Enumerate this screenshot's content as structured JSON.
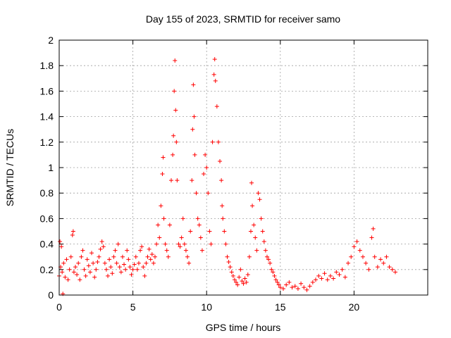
{
  "chart_data": {
    "type": "scatter",
    "title": "Day 155 of 2023, SRMTID for receiver samo",
    "xlabel": "GPS time / hours",
    "ylabel": "SRMTID / TECUs",
    "xlim": [
      0,
      25
    ],
    "ylim": [
      0,
      2
    ],
    "x_ticks": [
      0,
      5,
      10,
      15,
      20
    ],
    "x_tick_labels": [
      "0",
      "5",
      "10",
      "15",
      "20"
    ],
    "y_ticks": [
      0,
      0.2,
      0.4,
      0.6,
      0.8,
      1,
      1.2,
      1.4,
      1.6,
      1.8,
      2
    ],
    "y_tick_labels": [
      "0",
      "0.2",
      "0.4",
      "0.6",
      "0.8",
      "1",
      "1.2",
      "1.4",
      "1.6",
      "1.8",
      "2"
    ],
    "grid": true,
    "marker": "+",
    "color": "#ff0000",
    "series": [
      {
        "name": "SRMTID",
        "points": [
          [
            0.0,
            0.15
          ],
          [
            0.05,
            0.42
          ],
          [
            0.1,
            0.22
          ],
          [
            0.15,
            0.38
          ],
          [
            0.2,
            0.18
          ],
          [
            0.25,
            0.01
          ],
          [
            0.3,
            0.25
          ],
          [
            0.4,
            0.14
          ],
          [
            0.5,
            0.28
          ],
          [
            0.6,
            0.12
          ],
          [
            0.7,
            0.2
          ],
          [
            0.8,
            0.3
          ],
          [
            0.9,
            0.47
          ],
          [
            0.95,
            0.5
          ],
          [
            1.0,
            0.18
          ],
          [
            1.1,
            0.22
          ],
          [
            1.2,
            0.16
          ],
          [
            1.3,
            0.25
          ],
          [
            1.4,
            0.12
          ],
          [
            1.5,
            0.3
          ],
          [
            1.6,
            0.35
          ],
          [
            1.7,
            0.2
          ],
          [
            1.8,
            0.15
          ],
          [
            1.9,
            0.28
          ],
          [
            2.0,
            0.23
          ],
          [
            2.1,
            0.18
          ],
          [
            2.2,
            0.33
          ],
          [
            2.3,
            0.25
          ],
          [
            2.4,
            0.14
          ],
          [
            2.5,
            0.2
          ],
          [
            2.6,
            0.26
          ],
          [
            2.7,
            0.3
          ],
          [
            2.8,
            0.36
          ],
          [
            2.9,
            0.42
          ],
          [
            3.0,
            0.38
          ],
          [
            3.1,
            0.25
          ],
          [
            3.2,
            0.2
          ],
          [
            3.3,
            0.15
          ],
          [
            3.4,
            0.28
          ],
          [
            3.5,
            0.22
          ],
          [
            3.6,
            0.17
          ],
          [
            3.7,
            0.3
          ],
          [
            3.8,
            0.35
          ],
          [
            3.9,
            0.25
          ],
          [
            4.0,
            0.4
          ],
          [
            4.1,
            0.22
          ],
          [
            4.2,
            0.18
          ],
          [
            4.3,
            0.3
          ],
          [
            4.4,
            0.24
          ],
          [
            4.5,
            0.2
          ],
          [
            4.6,
            0.35
          ],
          [
            4.7,
            0.28
          ],
          [
            4.8,
            0.22
          ],
          [
            4.9,
            0.16
          ],
          [
            5.0,
            0.2
          ],
          [
            5.1,
            0.24
          ],
          [
            5.2,
            0.3
          ],
          [
            5.3,
            0.2
          ],
          [
            5.4,
            0.25
          ],
          [
            5.5,
            0.35
          ],
          [
            5.6,
            0.38
          ],
          [
            5.7,
            0.22
          ],
          [
            5.8,
            0.15
          ],
          [
            5.9,
            0.25
          ],
          [
            6.0,
            0.3
          ],
          [
            6.1,
            0.36
          ],
          [
            6.2,
            0.28
          ],
          [
            6.3,
            0.32
          ],
          [
            6.4,
            0.25
          ],
          [
            6.5,
            0.3
          ],
          [
            6.6,
            0.4
          ],
          [
            6.7,
            0.55
          ],
          [
            6.8,
            0.45
          ],
          [
            6.9,
            0.7
          ],
          [
            7.0,
            0.95
          ],
          [
            7.05,
            1.08
          ],
          [
            7.1,
            0.6
          ],
          [
            7.2,
            0.4
          ],
          [
            7.3,
            0.35
          ],
          [
            7.4,
            0.3
          ],
          [
            7.5,
            0.55
          ],
          [
            7.6,
            0.9
          ],
          [
            7.7,
            1.1
          ],
          [
            7.75,
            1.25
          ],
          [
            7.8,
            1.6
          ],
          [
            7.85,
            1.84
          ],
          [
            7.9,
            1.45
          ],
          [
            7.95,
            1.2
          ],
          [
            8.0,
            0.9
          ],
          [
            8.1,
            0.4
          ],
          [
            8.2,
            0.38
          ],
          [
            8.3,
            0.45
          ],
          [
            8.4,
            0.6
          ],
          [
            8.5,
            0.4
          ],
          [
            8.6,
            0.35
          ],
          [
            8.7,
            0.3
          ],
          [
            8.8,
            0.25
          ],
          [
            8.9,
            0.5
          ],
          [
            9.0,
            0.9
          ],
          [
            9.05,
            1.3
          ],
          [
            9.1,
            1.65
          ],
          [
            9.15,
            1.4
          ],
          [
            9.2,
            1.1
          ],
          [
            9.3,
            0.8
          ],
          [
            9.4,
            0.6
          ],
          [
            9.5,
            0.55
          ],
          [
            9.6,
            0.45
          ],
          [
            9.7,
            0.35
          ],
          [
            9.8,
            0.95
          ],
          [
            9.9,
            1.1
          ],
          [
            10.0,
            1.0
          ],
          [
            10.1,
            0.8
          ],
          [
            10.2,
            0.5
          ],
          [
            10.3,
            0.4
          ],
          [
            10.4,
            1.2
          ],
          [
            10.5,
            1.73
          ],
          [
            10.55,
            1.85
          ],
          [
            10.6,
            1.68
          ],
          [
            10.7,
            1.48
          ],
          [
            10.8,
            1.2
          ],
          [
            10.9,
            1.05
          ],
          [
            11.0,
            0.9
          ],
          [
            11.05,
            0.7
          ],
          [
            11.1,
            0.6
          ],
          [
            11.2,
            0.5
          ],
          [
            11.3,
            0.4
          ],
          [
            11.4,
            0.3
          ],
          [
            11.5,
            0.26
          ],
          [
            11.6,
            0.22
          ],
          [
            11.7,
            0.18
          ],
          [
            11.8,
            0.15
          ],
          [
            11.9,
            0.12
          ],
          [
            12.0,
            0.1
          ],
          [
            12.1,
            0.08
          ],
          [
            12.2,
            0.14
          ],
          [
            12.3,
            0.2
          ],
          [
            12.4,
            0.11
          ],
          [
            12.5,
            0.09
          ],
          [
            12.6,
            0.13
          ],
          [
            12.7,
            0.1
          ],
          [
            12.8,
            0.16
          ],
          [
            12.9,
            0.3
          ],
          [
            13.0,
            0.5
          ],
          [
            13.05,
            0.88
          ],
          [
            13.1,
            0.7
          ],
          [
            13.2,
            0.55
          ],
          [
            13.3,
            0.45
          ],
          [
            13.4,
            0.35
          ],
          [
            13.5,
            0.8
          ],
          [
            13.6,
            0.75
          ],
          [
            13.7,
            0.6
          ],
          [
            13.8,
            0.5
          ],
          [
            13.9,
            0.42
          ],
          [
            14.0,
            0.35
          ],
          [
            14.1,
            0.3
          ],
          [
            14.2,
            0.28
          ],
          [
            14.3,
            0.25
          ],
          [
            14.4,
            0.2
          ],
          [
            14.5,
            0.18
          ],
          [
            14.6,
            0.15
          ],
          [
            14.7,
            0.12
          ],
          [
            14.8,
            0.1
          ],
          [
            14.9,
            0.08
          ],
          [
            15.0,
            0.06
          ],
          [
            15.2,
            0.05
          ],
          [
            15.4,
            0.08
          ],
          [
            15.6,
            0.1
          ],
          [
            15.8,
            0.06
          ],
          [
            16.0,
            0.07
          ],
          [
            16.2,
            0.05
          ],
          [
            16.4,
            0.09
          ],
          [
            16.6,
            0.06
          ],
          [
            16.8,
            0.04
          ],
          [
            17.0,
            0.07
          ],
          [
            17.2,
            0.1
          ],
          [
            17.4,
            0.12
          ],
          [
            17.6,
            0.15
          ],
          [
            17.8,
            0.13
          ],
          [
            18.0,
            0.17
          ],
          [
            18.2,
            0.12
          ],
          [
            18.4,
            0.15
          ],
          [
            18.6,
            0.13
          ],
          [
            18.8,
            0.18
          ],
          [
            19.0,
            0.16
          ],
          [
            19.2,
            0.2
          ],
          [
            19.4,
            0.14
          ],
          [
            19.6,
            0.25
          ],
          [
            19.8,
            0.3
          ],
          [
            20.0,
            0.38
          ],
          [
            20.2,
            0.42
          ],
          [
            20.4,
            0.35
          ],
          [
            20.6,
            0.3
          ],
          [
            20.8,
            0.25
          ],
          [
            21.0,
            0.2
          ],
          [
            21.2,
            0.45
          ],
          [
            21.3,
            0.52
          ],
          [
            21.4,
            0.3
          ],
          [
            21.6,
            0.22
          ],
          [
            21.8,
            0.28
          ],
          [
            22.0,
            0.25
          ],
          [
            22.2,
            0.3
          ],
          [
            22.4,
            0.22
          ],
          [
            22.6,
            0.2
          ],
          [
            22.8,
            0.18
          ]
        ]
      }
    ]
  }
}
